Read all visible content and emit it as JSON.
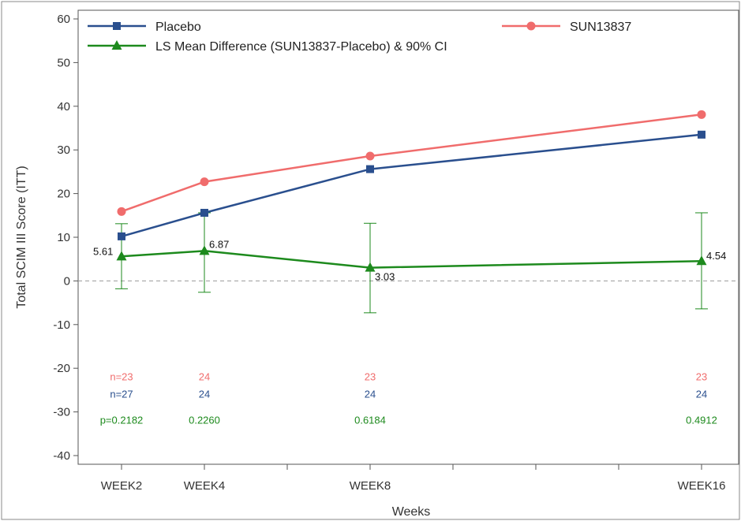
{
  "colors": {
    "placebo": "#2a4f8e",
    "sun": "#f06c6c",
    "diff": "#1d8a1d",
    "axis": "#555555",
    "reference_line": "#999999"
  },
  "chart_data": {
    "type": "line",
    "xlabel": "Weeks",
    "ylabel": "Total SCIM III Score (ITT)",
    "ylim": [
      -40,
      60
    ],
    "yticks": [
      60,
      50,
      40,
      30,
      20,
      10,
      0,
      -10,
      -20,
      -30,
      -40
    ],
    "x_scale": {
      "min": 0,
      "max": 16
    },
    "x": [
      2,
      4,
      8,
      16
    ],
    "categories": [
      "WEEK2",
      "WEEK4",
      "WEEK8",
      "WEEK16"
    ],
    "minor_ticks": [
      6,
      10,
      12,
      14
    ],
    "legend_position": "top",
    "grid": false,
    "reference_line_y": 0,
    "series": [
      {
        "name": "Placebo",
        "marker": "square",
        "color": "#2a4f8e",
        "values": [
          10.2,
          15.6,
          25.6,
          33.5
        ]
      },
      {
        "name": "SUN13837",
        "marker": "circle",
        "color": "#f06c6c",
        "values": [
          15.9,
          22.7,
          28.6,
          38.1
        ]
      },
      {
        "name": "LS Mean Difference (SUN13837-Placebo) & 90% CI",
        "marker": "triangle",
        "color": "#1d8a1d",
        "values": [
          5.61,
          6.87,
          3.03,
          4.54
        ],
        "ci_low": [
          -1.8,
          -2.6,
          -7.3,
          -6.4
        ],
        "ci_high": [
          13.1,
          15.6,
          13.2,
          15.6
        ],
        "labels": [
          "5.61",
          "6.87",
          "3.03",
          "4.54"
        ]
      }
    ],
    "n_rows": [
      {
        "color": "#f06c6c",
        "y": -22,
        "texts": [
          "n=23",
          "24",
          "23",
          "23"
        ]
      },
      {
        "color": "#2a4f8e",
        "y": -26,
        "texts": [
          "n=27",
          "24",
          "24",
          "24"
        ]
      },
      {
        "color": "#1d8a1d",
        "y": -32,
        "texts": [
          "p=0.2182",
          "0.2260",
          "0.6184",
          "0.4912"
        ]
      }
    ]
  }
}
